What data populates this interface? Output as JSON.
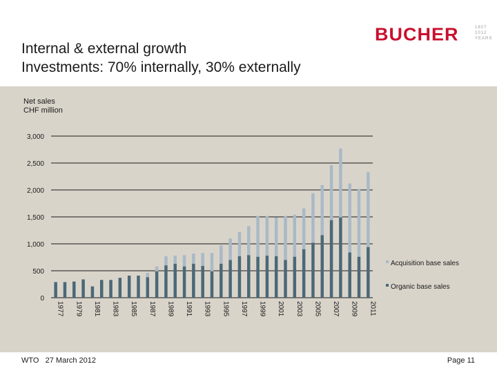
{
  "slide": {
    "title_line1": "Internal & external growth",
    "title_line2": "Investments: 70% internally, 30% externally",
    "logo": "BUCHER",
    "logo_years": "1807\n2012\nYEARS",
    "footer_left": "WTO   27 March 2012",
    "footer_right": "Page 11"
  },
  "colors": {
    "organic": "#4a6878",
    "acquisition": "#a9b9c6",
    "panel": "#d9d4ca",
    "brand": "#c8102e"
  },
  "chart_data": {
    "type": "bar",
    "stacked": true,
    "ylabel": "Net sales\nCHF million",
    "ylim": [
      0,
      3000
    ],
    "yticks": [
      "0",
      "500",
      "1,000",
      "1,500",
      "2,000",
      "2,500",
      "3,000"
    ],
    "ytick_values": [
      0,
      500,
      1000,
      1500,
      2000,
      2500,
      3000
    ],
    "categories": [
      1977,
      1978,
      1979,
      1980,
      1981,
      1982,
      1983,
      1984,
      1985,
      1986,
      1987,
      1988,
      1989,
      1990,
      1991,
      1992,
      1993,
      1994,
      1995,
      1996,
      1997,
      1998,
      1999,
      2000,
      2001,
      2002,
      2003,
      2004,
      2005,
      2006,
      2007,
      2008,
      2009,
      2010,
      2011
    ],
    "xtick_labels": [
      "1977",
      "1979",
      "1981",
      "1983",
      "1985",
      "1987",
      "1989",
      "1991",
      "1993",
      "1995",
      "1997",
      "1999",
      "2001",
      "2003",
      "2005",
      "2007",
      "2009",
      "2011"
    ],
    "series": [
      {
        "name": "Organic base sales",
        "values": [
          290,
          290,
          300,
          340,
          210,
          330,
          330,
          370,
          410,
          410,
          380,
          490,
          600,
          630,
          580,
          630,
          590,
          490,
          630,
          700,
          770,
          790,
          760,
          780,
          770,
          700,
          760,
          900,
          1020,
          1160,
          1440,
          1490,
          840,
          760,
          940
        ]
      },
      {
        "name": "Acquisition base sales",
        "values": [
          0,
          0,
          0,
          0,
          0,
          0,
          0,
          0,
          0,
          0,
          80,
          90,
          170,
          150,
          210,
          190,
          240,
          340,
          340,
          400,
          450,
          540,
          760,
          740,
          720,
          820,
          780,
          760,
          920,
          930,
          1020,
          1280,
          1280,
          1260,
          1390
        ]
      }
    ],
    "legend": [
      "Acquisition base sales",
      "Organic base sales"
    ]
  }
}
